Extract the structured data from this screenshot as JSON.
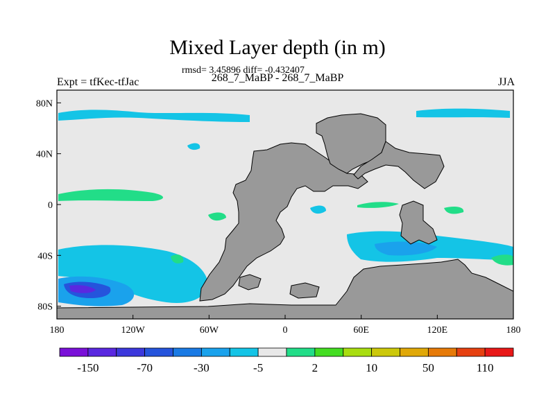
{
  "chart_data": {
    "type": "filled-contour-map",
    "title": "Mixed Layer depth (in m)",
    "stats_text": "rmsd= 3.45896 diff= -0.432407",
    "left_label": "Expt = tfKec-tfJac",
    "center_label": "268_7_MaBP - 268_7_MaBP",
    "right_label": "JJA",
    "x_ticks": [
      "180",
      "120W",
      "60W",
      "0",
      "60E",
      "120E",
      "180"
    ],
    "y_ticks": [
      "80N",
      "40N",
      "0",
      "40S",
      "80S"
    ],
    "xlim": [
      -180,
      180
    ],
    "ylim": [
      -90,
      90
    ],
    "colorbar": {
      "colors": [
        "#7a10d8",
        "#5a28e0",
        "#3c38dc",
        "#2554dc",
        "#1a7ae4",
        "#1aa2ec",
        "#14c4e6",
        "#e8e8e8",
        "#22dd88",
        "#44dd22",
        "#a8dd10",
        "#ccc80a",
        "#e0a808",
        "#e67a08",
        "#e64010",
        "#e81818"
      ],
      "labels": [
        "-150",
        "-70",
        "-30",
        "-5",
        "2",
        "10",
        "50",
        "110"
      ]
    },
    "background_color": "#e8e8e8",
    "land_color": "#999999"
  }
}
